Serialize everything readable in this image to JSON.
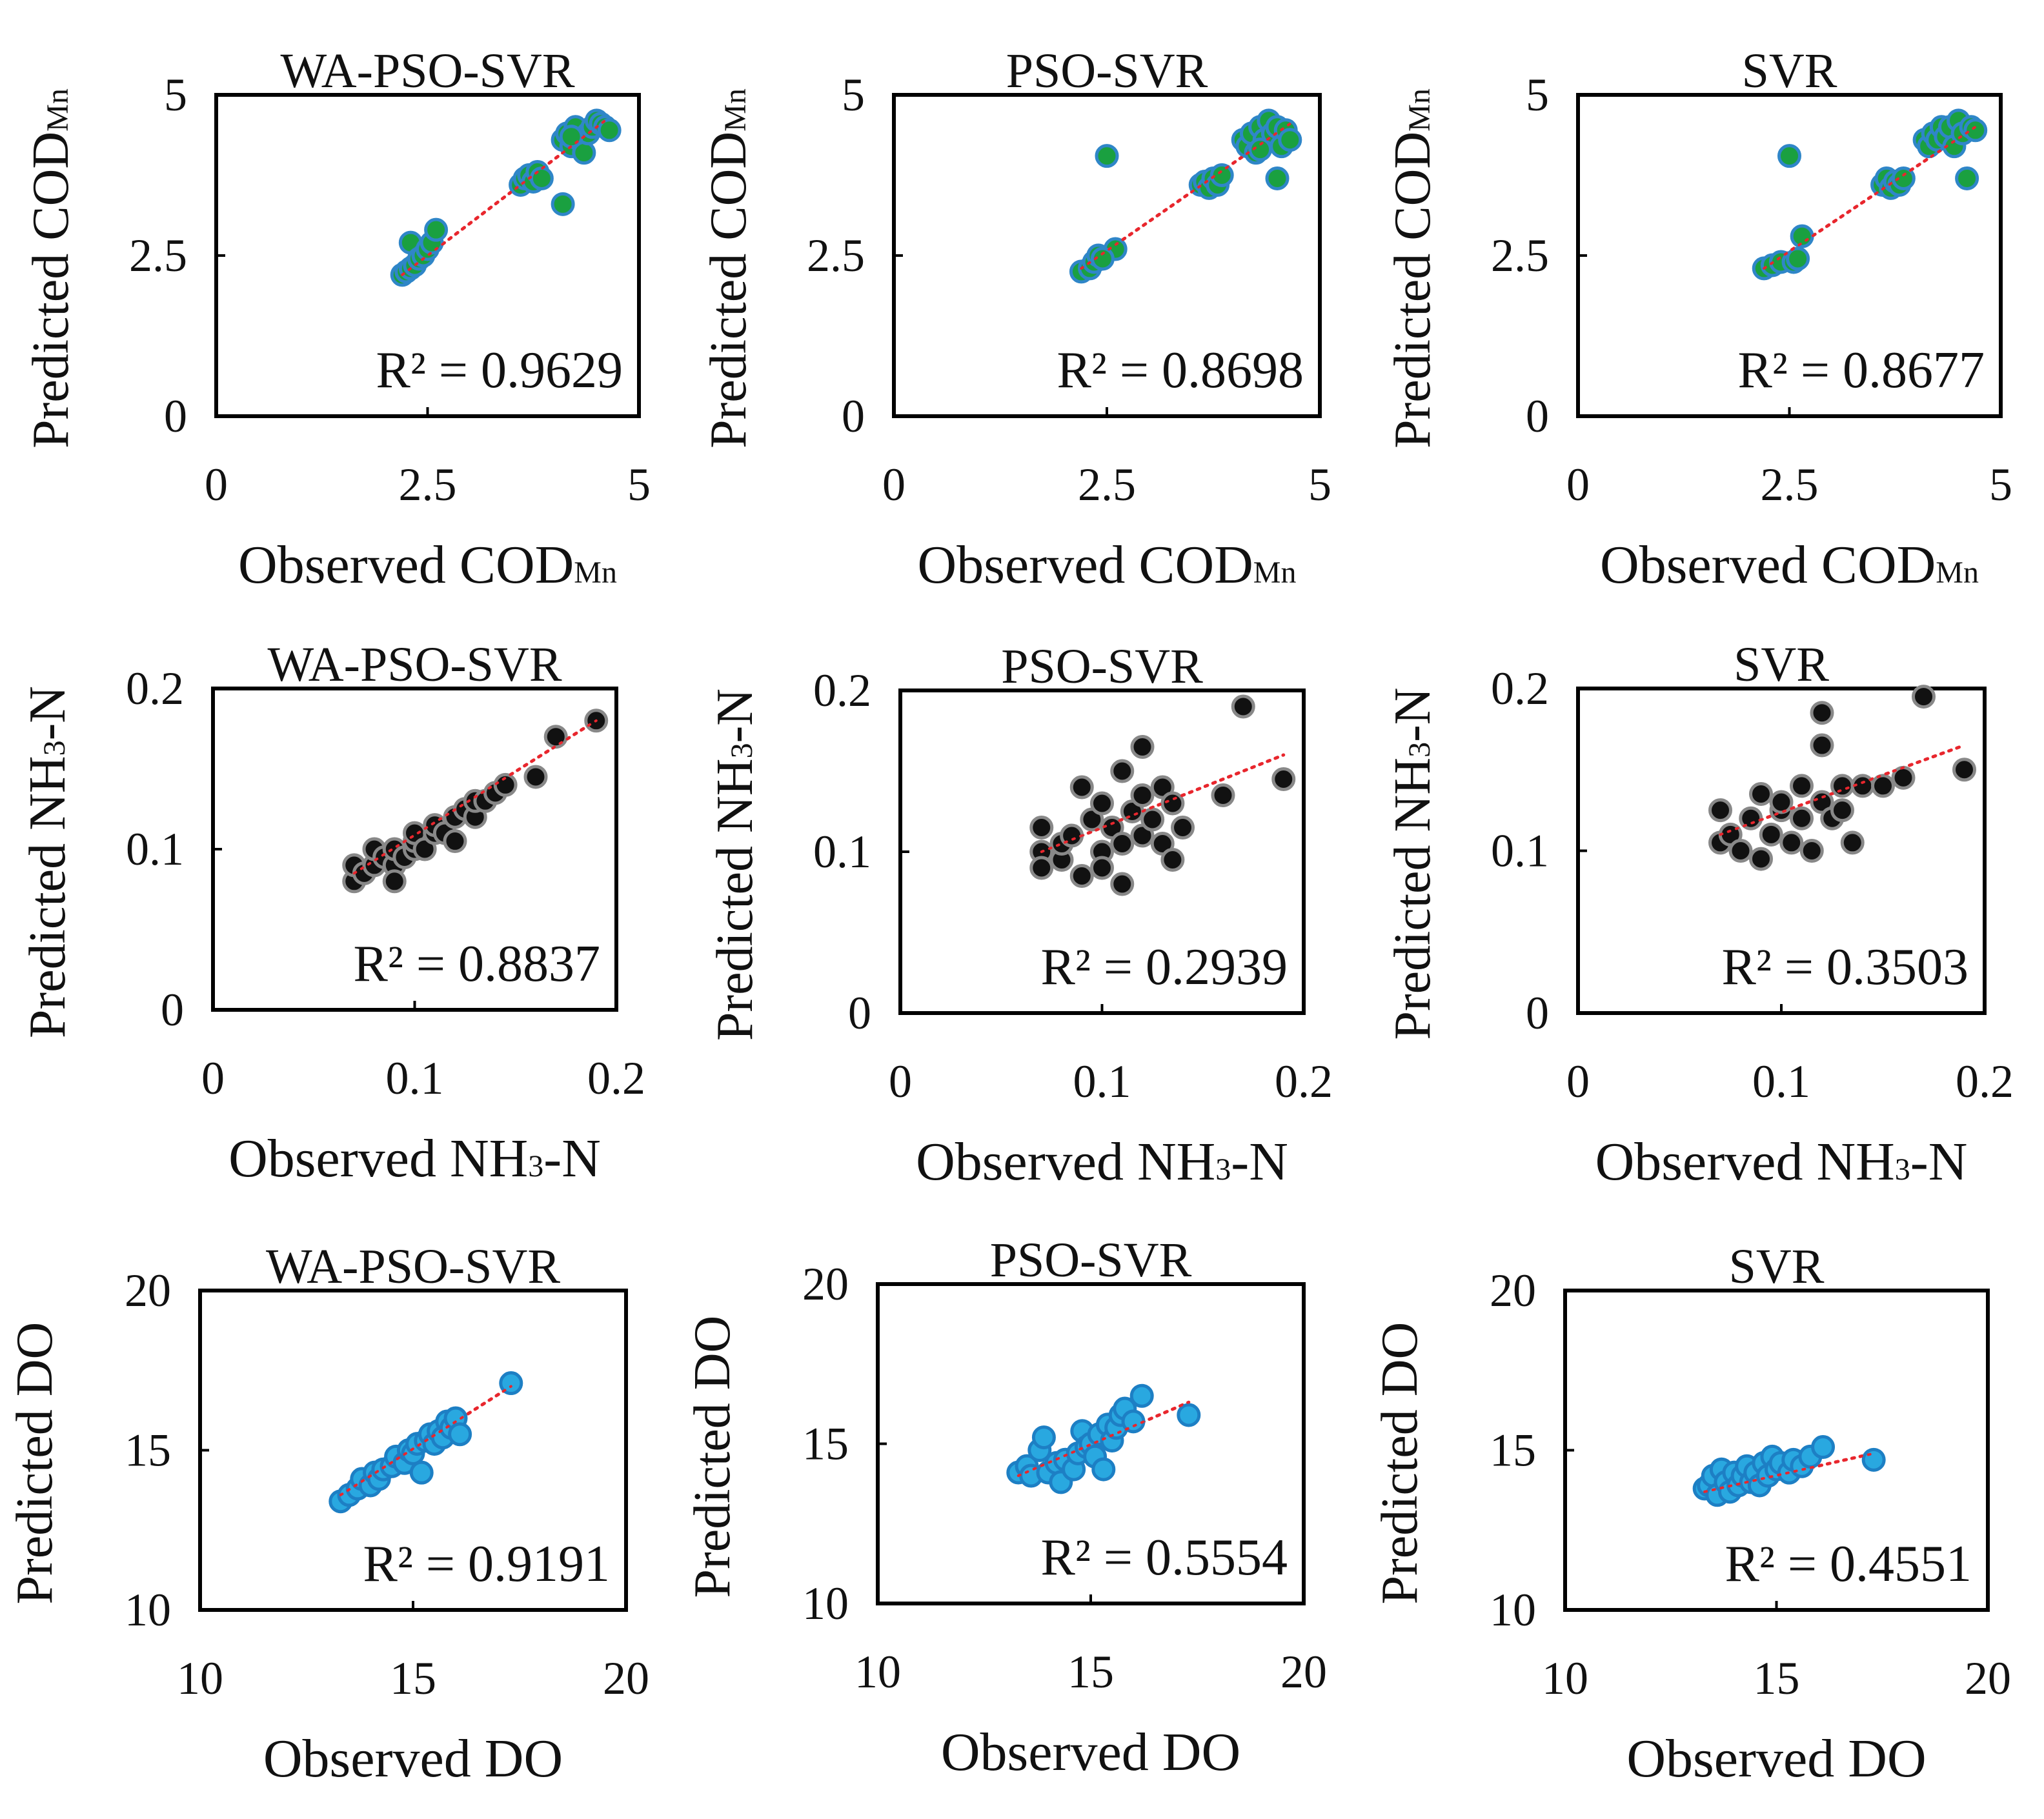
{
  "chart_data": [
    {
      "type": "scatter",
      "title": "WA-PSO-SVR",
      "xlabel": "Observed COD",
      "xlabel_sub": "Mn",
      "ylabel": "Predicted COD",
      "ylabel_sub": "Mn",
      "xlim": [
        0,
        5
      ],
      "ylim": [
        0,
        5
      ],
      "xticks": [
        "0",
        "2.5",
        "5"
      ],
      "yticks": [
        "0",
        "2.5",
        "5"
      ],
      "r2": "R² = 0.9629",
      "marker_color": "#1aa040",
      "marker_edge": "#2f86c8",
      "points": [
        [
          2.2,
          2.2
        ],
        [
          2.25,
          2.25
        ],
        [
          2.3,
          2.3
        ],
        [
          2.35,
          2.35
        ],
        [
          2.3,
          2.7
        ],
        [
          2.4,
          2.45
        ],
        [
          2.45,
          2.5
        ],
        [
          2.5,
          2.6
        ],
        [
          2.55,
          2.7
        ],
        [
          2.6,
          2.9
        ],
        [
          3.6,
          3.6
        ],
        [
          3.65,
          3.7
        ],
        [
          3.7,
          3.75
        ],
        [
          3.75,
          3.65
        ],
        [
          3.8,
          3.8
        ],
        [
          3.85,
          3.7
        ],
        [
          4.1,
          3.3
        ],
        [
          4.1,
          4.3
        ],
        [
          4.15,
          4.4
        ],
        [
          4.2,
          4.2
        ],
        [
          4.25,
          4.5
        ],
        [
          4.3,
          4.3
        ],
        [
          4.35,
          4.1
        ],
        [
          4.4,
          4.4
        ],
        [
          4.45,
          4.5
        ],
        [
          4.5,
          4.6
        ],
        [
          4.55,
          4.55
        ],
        [
          4.6,
          4.5
        ],
        [
          4.65,
          4.45
        ],
        [
          4.2,
          4.35
        ]
      ],
      "fit": [
        [
          2.2,
          2.2
        ],
        [
          4.6,
          4.6
        ]
      ]
    },
    {
      "type": "scatter",
      "title": "PSO-SVR",
      "xlabel": "Observed COD",
      "xlabel_sub": "Mn",
      "ylabel": "Predicted COD",
      "ylabel_sub": "Mn",
      "xlim": [
        0,
        5
      ],
      "ylim": [
        0,
        5
      ],
      "xticks": [
        "0",
        "2.5",
        "5"
      ],
      "yticks": [
        "0",
        "2.5",
        "5"
      ],
      "r2": "R² = 0.8698",
      "marker_color": "#1aa040",
      "marker_edge": "#2f86c8",
      "points": [
        [
          2.2,
          2.25
        ],
        [
          2.3,
          2.3
        ],
        [
          2.35,
          2.4
        ],
        [
          2.4,
          2.5
        ],
        [
          2.5,
          4.05
        ],
        [
          2.6,
          2.6
        ],
        [
          2.45,
          2.45
        ],
        [
          3.6,
          3.6
        ],
        [
          3.65,
          3.65
        ],
        [
          3.7,
          3.55
        ],
        [
          3.75,
          3.7
        ],
        [
          3.8,
          3.6
        ],
        [
          3.85,
          3.75
        ],
        [
          4.1,
          4.3
        ],
        [
          4.15,
          4.2
        ],
        [
          4.2,
          4.4
        ],
        [
          4.25,
          4.1
        ],
        [
          4.3,
          4.5
        ],
        [
          4.35,
          4.3
        ],
        [
          4.4,
          4.6
        ],
        [
          4.45,
          4.4
        ],
        [
          4.5,
          4.5
        ],
        [
          4.55,
          4.2
        ],
        [
          4.6,
          4.45
        ],
        [
          4.65,
          4.3
        ],
        [
          4.5,
          3.7
        ],
        [
          4.3,
          4.15
        ]
      ],
      "fit": [
        [
          2.2,
          2.3
        ],
        [
          4.65,
          4.55
        ]
      ]
    },
    {
      "type": "scatter",
      "title": "SVR",
      "xlabel": "Observed COD",
      "xlabel_sub": "Mn",
      "ylabel": "Predicted COD",
      "ylabel_sub": "Mn",
      "xlim": [
        0,
        5
      ],
      "ylim": [
        0,
        5
      ],
      "xticks": [
        "0",
        "2.5",
        "5"
      ],
      "yticks": [
        "0",
        "2.5",
        "5"
      ],
      "r2": "R² = 0.8677",
      "marker_color": "#1aa040",
      "marker_edge": "#2f86c8",
      "points": [
        [
          2.2,
          2.3
        ],
        [
          2.3,
          2.35
        ],
        [
          2.4,
          2.4
        ],
        [
          2.5,
          4.05
        ],
        [
          2.55,
          2.4
        ],
        [
          2.6,
          2.45
        ],
        [
          2.65,
          2.8
        ],
        [
          3.6,
          3.6
        ],
        [
          3.65,
          3.7
        ],
        [
          3.7,
          3.55
        ],
        [
          3.75,
          3.65
        ],
        [
          3.8,
          3.6
        ],
        [
          3.85,
          3.7
        ],
        [
          4.1,
          4.3
        ],
        [
          4.15,
          4.2
        ],
        [
          4.2,
          4.4
        ],
        [
          4.25,
          4.3
        ],
        [
          4.3,
          4.5
        ],
        [
          4.35,
          4.35
        ],
        [
          4.4,
          4.5
        ],
        [
          4.45,
          4.2
        ],
        [
          4.5,
          4.6
        ],
        [
          4.55,
          4.4
        ],
        [
          4.6,
          3.7
        ],
        [
          4.65,
          4.5
        ],
        [
          4.7,
          4.45
        ]
      ],
      "fit": [
        [
          2.2,
          2.3
        ],
        [
          4.7,
          4.5
        ]
      ]
    },
    {
      "type": "scatter",
      "title": "WA-PSO-SVR",
      "xlabel": "Observed NH",
      "xlabel_sub": "3",
      "xlabel_tail": "-N",
      "ylabel": "Predicted NH",
      "ylabel_sub": "3",
      "ylabel_tail": "-N",
      "xlim": [
        0,
        0.2
      ],
      "ylim": [
        0,
        0.2
      ],
      "xticks": [
        "0",
        "0.1",
        "0.2"
      ],
      "yticks": [
        "0",
        "0.1",
        "0.2"
      ],
      "r2": "R² = 0.8837",
      "marker_color": "#111111",
      "marker_edge": "#888888",
      "points": [
        [
          0.07,
          0.08
        ],
        [
          0.07,
          0.09
        ],
        [
          0.075,
          0.085
        ],
        [
          0.08,
          0.09
        ],
        [
          0.08,
          0.1
        ],
        [
          0.085,
          0.095
        ],
        [
          0.09,
          0.09
        ],
        [
          0.09,
          0.1
        ],
        [
          0.09,
          0.08
        ],
        [
          0.095,
          0.095
        ],
        [
          0.1,
          0.1
        ],
        [
          0.1,
          0.105
        ],
        [
          0.1,
          0.11
        ],
        [
          0.105,
          0.1
        ],
        [
          0.11,
          0.11
        ],
        [
          0.11,
          0.115
        ],
        [
          0.115,
          0.11
        ],
        [
          0.12,
          0.12
        ],
        [
          0.12,
          0.105
        ],
        [
          0.125,
          0.125
        ],
        [
          0.13,
          0.12
        ],
        [
          0.13,
          0.13
        ],
        [
          0.135,
          0.13
        ],
        [
          0.14,
          0.135
        ],
        [
          0.145,
          0.14
        ],
        [
          0.16,
          0.145
        ],
        [
          0.17,
          0.17
        ],
        [
          0.19,
          0.18
        ]
      ],
      "fit": [
        [
          0.07,
          0.085
        ],
        [
          0.19,
          0.18
        ]
      ]
    },
    {
      "type": "scatter",
      "title": "PSO-SVR",
      "xlabel": "Observed NH",
      "xlabel_sub": "3",
      "xlabel_tail": "-N",
      "ylabel": "Predicted NH",
      "ylabel_sub": "3",
      "ylabel_tail": "-N",
      "xlim": [
        0,
        0.2
      ],
      "ylim": [
        0,
        0.2
      ],
      "xticks": [
        "0",
        "0.1",
        "0.2"
      ],
      "yticks": [
        "0",
        "0.1",
        "0.2"
      ],
      "r2": "R² = 0.2939",
      "marker_color": "#111111",
      "marker_edge": "#888888",
      "points": [
        [
          0.07,
          0.1
        ],
        [
          0.07,
          0.09
        ],
        [
          0.07,
          0.115
        ],
        [
          0.08,
          0.095
        ],
        [
          0.08,
          0.105
        ],
        [
          0.085,
          0.11
        ],
        [
          0.09,
          0.085
        ],
        [
          0.09,
          0.14
        ],
        [
          0.095,
          0.12
        ],
        [
          0.1,
          0.1
        ],
        [
          0.1,
          0.13
        ],
        [
          0.1,
          0.09
        ],
        [
          0.105,
          0.115
        ],
        [
          0.11,
          0.08
        ],
        [
          0.11,
          0.15
        ],
        [
          0.11,
          0.105
        ],
        [
          0.115,
          0.125
        ],
        [
          0.12,
          0.11
        ],
        [
          0.12,
          0.165
        ],
        [
          0.12,
          0.135
        ],
        [
          0.125,
          0.12
        ],
        [
          0.13,
          0.14
        ],
        [
          0.13,
          0.105
        ],
        [
          0.135,
          0.095
        ],
        [
          0.135,
          0.13
        ],
        [
          0.14,
          0.115
        ],
        [
          0.16,
          0.135
        ],
        [
          0.17,
          0.19
        ],
        [
          0.19,
          0.145
        ]
      ],
      "fit": [
        [
          0.07,
          0.1
        ],
        [
          0.19,
          0.16
        ]
      ]
    },
    {
      "type": "scatter",
      "title": "SVR",
      "xlabel": "Observed NH",
      "xlabel_sub": "3",
      "xlabel_tail": "-N",
      "ylabel": "Predicted NH",
      "ylabel_sub": "3",
      "ylabel_tail": "-N",
      "xlim": [
        0,
        0.2
      ],
      "ylim": [
        0,
        0.2
      ],
      "xticks": [
        "0",
        "0.1",
        "0.2"
      ],
      "yticks": [
        "0",
        "0.1",
        "0.2"
      ],
      "r2": "R² = 0.3503",
      "marker_color": "#111111",
      "marker_edge": "#888888",
      "points": [
        [
          0.07,
          0.105
        ],
        [
          0.07,
          0.125
        ],
        [
          0.075,
          0.11
        ],
        [
          0.08,
          0.1
        ],
        [
          0.085,
          0.12
        ],
        [
          0.09,
          0.095
        ],
        [
          0.09,
          0.135
        ],
        [
          0.095,
          0.11
        ],
        [
          0.1,
          0.125
        ],
        [
          0.1,
          0.13
        ],
        [
          0.105,
          0.105
        ],
        [
          0.11,
          0.12
        ],
        [
          0.11,
          0.14
        ],
        [
          0.115,
          0.1
        ],
        [
          0.12,
          0.13
        ],
        [
          0.12,
          0.185
        ],
        [
          0.12,
          0.165
        ],
        [
          0.125,
          0.12
        ],
        [
          0.13,
          0.14
        ],
        [
          0.13,
          0.125
        ],
        [
          0.135,
          0.105
        ],
        [
          0.14,
          0.14
        ],
        [
          0.15,
          0.14
        ],
        [
          0.16,
          0.145
        ],
        [
          0.17,
          0.195
        ],
        [
          0.19,
          0.15
        ]
      ],
      "fit": [
        [
          0.07,
          0.11
        ],
        [
          0.19,
          0.165
        ]
      ]
    },
    {
      "type": "scatter",
      "title": "WA-PSO-SVR",
      "xlabel": "Observed DO",
      "ylabel": "Predicted DO",
      "xlim": [
        10,
        20
      ],
      "ylim": [
        10,
        20
      ],
      "xticks": [
        "10",
        "15",
        "20"
      ],
      "yticks": [
        "10",
        "15",
        "20"
      ],
      "r2": "R² = 0.9191",
      "marker_color": "#29a8e0",
      "marker_edge": "#1d7fc4",
      "points": [
        [
          13.3,
          13.4
        ],
        [
          13.5,
          13.6
        ],
        [
          13.7,
          13.8
        ],
        [
          13.8,
          14.1
        ],
        [
          14,
          13.9
        ],
        [
          14.1,
          14.3
        ],
        [
          14.2,
          14.1
        ],
        [
          14.3,
          14.4
        ],
        [
          14.5,
          14.5
        ],
        [
          14.6,
          14.8
        ],
        [
          14.8,
          14.6
        ],
        [
          14.9,
          15
        ],
        [
          15,
          14.9
        ],
        [
          15.1,
          15.2
        ],
        [
          15.2,
          14.3
        ],
        [
          15.3,
          15.3
        ],
        [
          15.4,
          15.5
        ],
        [
          15.5,
          15.2
        ],
        [
          15.6,
          15.6
        ],
        [
          15.7,
          15.4
        ],
        [
          15.8,
          15.9
        ],
        [
          15.9,
          15.7
        ],
        [
          16,
          16
        ],
        [
          16.1,
          15.5
        ],
        [
          17.3,
          17.1
        ]
      ],
      "fit": [
        [
          13.3,
          13.6
        ],
        [
          17.3,
          17
        ]
      ]
    },
    {
      "type": "scatter",
      "title": "PSO-SVR",
      "xlabel": "Observed DO",
      "ylabel": "Predicted DO",
      "xlim": [
        10,
        20
      ],
      "ylim": [
        10,
        20
      ],
      "xticks": [
        "10",
        "15",
        "20"
      ],
      "yticks": [
        "10",
        "15",
        "20"
      ],
      "r2": "R² = 0.5554",
      "marker_color": "#29a8e0",
      "marker_edge": "#1d7fc4",
      "points": [
        [
          13.3,
          14.1
        ],
        [
          13.5,
          14.3
        ],
        [
          13.6,
          14
        ],
        [
          13.8,
          14.8
        ],
        [
          13.9,
          15.2
        ],
        [
          14,
          14.1
        ],
        [
          14.2,
          14.4
        ],
        [
          14.3,
          13.8
        ],
        [
          14.4,
          14.5
        ],
        [
          14.6,
          14.2
        ],
        [
          14.7,
          14.7
        ],
        [
          14.8,
          15.4
        ],
        [
          14.9,
          14.9
        ],
        [
          15,
          15
        ],
        [
          15.1,
          14.6
        ],
        [
          15.2,
          15.3
        ],
        [
          15.3,
          14.2
        ],
        [
          15.4,
          15.6
        ],
        [
          15.5,
          15.1
        ],
        [
          15.6,
          15.5
        ],
        [
          15.7,
          15.9
        ],
        [
          15.8,
          16.1
        ],
        [
          16,
          15.7
        ],
        [
          16.2,
          16.5
        ],
        [
          17.3,
          15.9
        ]
      ],
      "fit": [
        [
          13.3,
          14
        ],
        [
          17.3,
          16.3
        ]
      ]
    },
    {
      "type": "scatter",
      "title": "SVR",
      "xlabel": "Observed DO",
      "ylabel": "Predicted DO",
      "xlim": [
        10,
        20
      ],
      "ylim": [
        10,
        20
      ],
      "xticks": [
        "10",
        "15",
        "20"
      ],
      "yticks": [
        "10",
        "15",
        "20"
      ],
      "r2": "R² = 0.4551",
      "marker_color": "#29a8e0",
      "marker_edge": "#1d7fc4",
      "points": [
        [
          13.3,
          13.8
        ],
        [
          13.4,
          13.9
        ],
        [
          13.5,
          14.2
        ],
        [
          13.6,
          13.6
        ],
        [
          13.7,
          14.4
        ],
        [
          13.8,
          14
        ],
        [
          13.9,
          13.7
        ],
        [
          14,
          14.3
        ],
        [
          14.1,
          13.9
        ],
        [
          14.2,
          14.2
        ],
        [
          14.3,
          14.5
        ],
        [
          14.4,
          14
        ],
        [
          14.5,
          14.3
        ],
        [
          14.6,
          13.9
        ],
        [
          14.7,
          14.6
        ],
        [
          14.8,
          14.2
        ],
        [
          14.9,
          14.8
        ],
        [
          15,
          14.4
        ],
        [
          15.1,
          14.6
        ],
        [
          15.3,
          14.3
        ],
        [
          15.4,
          14.7
        ],
        [
          15.6,
          14.5
        ],
        [
          15.8,
          14.8
        ],
        [
          16.1,
          15.1
        ],
        [
          17.3,
          14.7
        ]
      ],
      "fit": [
        [
          13.3,
          13.7
        ],
        [
          17.3,
          14.9
        ]
      ]
    }
  ]
}
